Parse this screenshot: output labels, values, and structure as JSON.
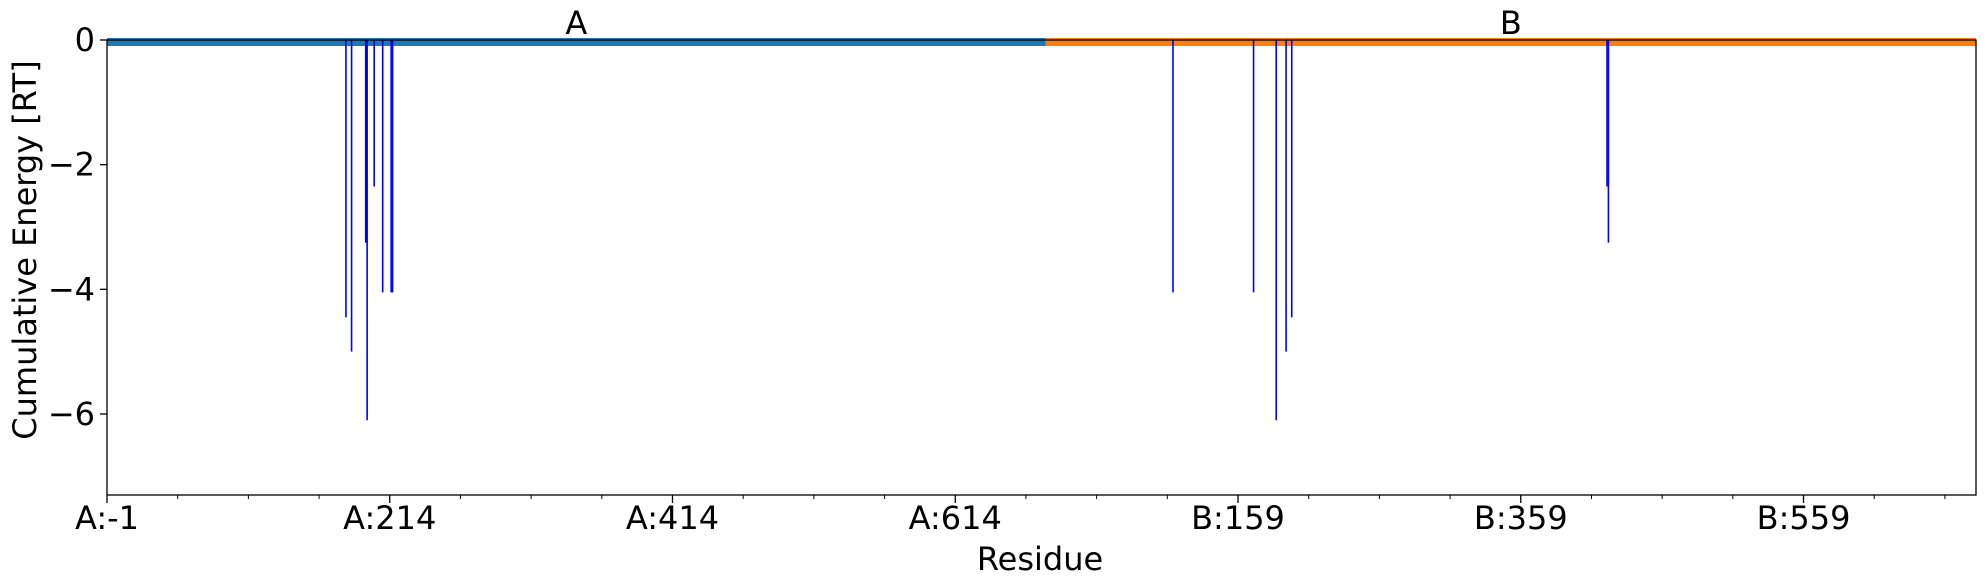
{
  "chart_data": {
    "type": "bar",
    "title": "",
    "xlabel": "Residue",
    "ylabel": "Cumulative Energy [RT]",
    "ylim": [
      -7.3,
      0
    ],
    "yticks": [
      0,
      -2,
      -4,
      -6
    ],
    "ytick_labels": [
      "0",
      "−2",
      "−4",
      "−6"
    ],
    "x_index_range": [
      0,
      1322
    ],
    "xticks": [
      {
        "index": 0,
        "label": "A:-1"
      },
      {
        "index": 200,
        "label": "A:214"
      },
      {
        "index": 400,
        "label": "A:414"
      },
      {
        "index": 600,
        "label": "A:614"
      },
      {
        "index": 800,
        "label": "B:159"
      },
      {
        "index": 1000,
        "label": "B:359"
      },
      {
        "index": 1200,
        "label": "B:559"
      }
    ],
    "minor_tick_step": 50,
    "grid": false,
    "legend": "none",
    "chains": [
      {
        "name": "A",
        "start": 0,
        "end": 664,
        "color": "#1f77b4"
      },
      {
        "name": "B",
        "start": 664,
        "end": 1322,
        "color": "#ff7f0e"
      }
    ],
    "bar_color": "#0000ff",
    "bars": [
      {
        "x": 169,
        "y": -4.45
      },
      {
        "x": 173,
        "y": -5.0
      },
      {
        "x": 183,
        "y": -3.25
      },
      {
        "x": 184,
        "y": -6.1
      },
      {
        "x": 189,
        "y": -2.35
      },
      {
        "x": 195,
        "y": -4.05
      },
      {
        "x": 201,
        "y": -4.05
      },
      {
        "x": 202,
        "y": -4.05
      },
      {
        "x": 754,
        "y": -4.05
      },
      {
        "x": 811,
        "y": -4.05
      },
      {
        "x": 827,
        "y": -6.1
      },
      {
        "x": 834,
        "y": -5.0
      },
      {
        "x": 838,
        "y": -4.45
      },
      {
        "x": 1061,
        "y": -2.35
      },
      {
        "x": 1062,
        "y": -3.25
      }
    ]
  },
  "colors": {
    "axis": "#000000",
    "background": "#ffffff"
  }
}
